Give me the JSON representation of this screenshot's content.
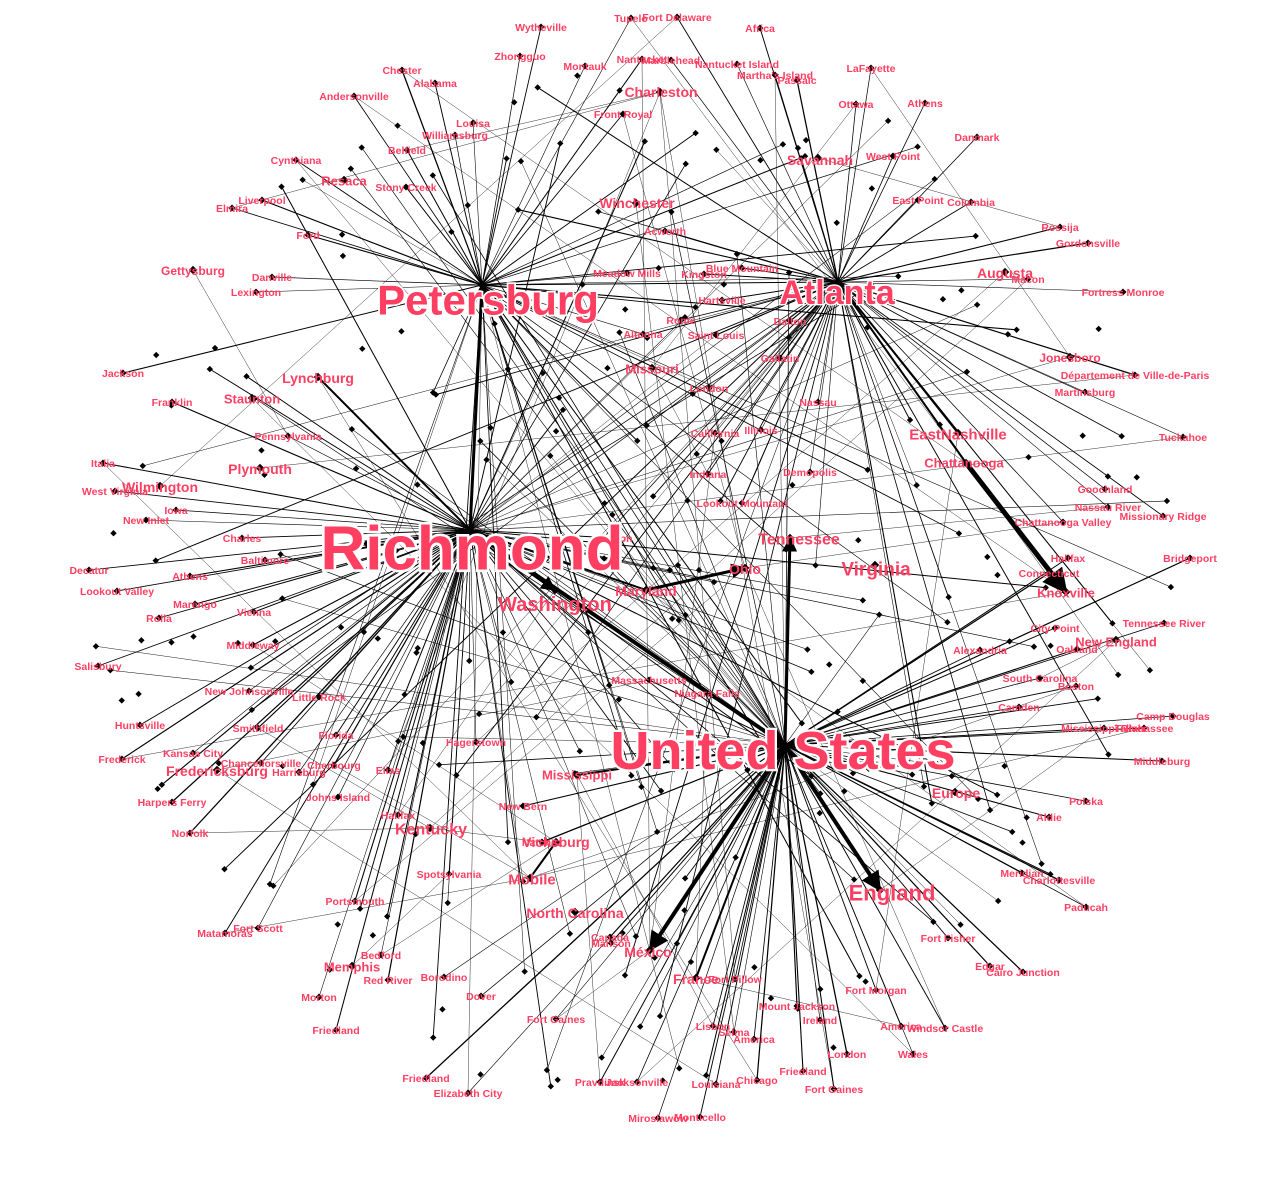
{
  "colors": {
    "label": "#ff3f62",
    "edge": "#000000",
    "node": "#000000",
    "background": "#ffffff"
  },
  "hubs": [
    {
      "id": "Richmond",
      "label": "Richmond",
      "size": "xl"
    },
    {
      "id": "UnitedStates",
      "label": "United States",
      "size": "xl"
    },
    {
      "id": "Petersburg",
      "label": "Petersburg",
      "size": "l"
    },
    {
      "id": "Atlanta",
      "label": "Atlanta",
      "size": "l"
    },
    {
      "id": "Washington",
      "label": "Washington",
      "size": "m"
    },
    {
      "id": "England",
      "label": "England",
      "size": "m"
    },
    {
      "id": "Tennessee",
      "label": "Tennessee",
      "size": "m"
    },
    {
      "id": "Virginia",
      "label": "Virginia",
      "size": "m"
    },
    {
      "id": "Charleston",
      "label": "Charleston",
      "size": "s"
    },
    {
      "id": "Savannah",
      "label": "Savannah",
      "size": "s"
    },
    {
      "id": "Winchester",
      "label": "Winchester",
      "size": "s"
    },
    {
      "id": "Lynchburg",
      "label": "Lynchburg",
      "size": "s"
    },
    {
      "id": "Kentucky",
      "label": "Kentucky",
      "size": "s"
    },
    {
      "id": "Vicksburg",
      "label": "Vicksburg",
      "size": "s"
    },
    {
      "id": "Mobile",
      "label": "Mobile",
      "size": "s"
    },
    {
      "id": "Chattanooga",
      "label": "Chattanooga",
      "size": "s"
    },
    {
      "id": "EastNashville",
      "label": "EastNashville",
      "size": "s"
    },
    {
      "id": "Mexico",
      "label": "México",
      "size": "s"
    },
    {
      "id": "France",
      "label": "France",
      "size": "s"
    },
    {
      "id": "Knoxville",
      "label": "Knoxville",
      "size": "s"
    },
    {
      "id": "Maryland",
      "label": "Maryland",
      "size": "s"
    },
    {
      "id": "Ohio",
      "label": "Ohio",
      "size": "s"
    },
    {
      "id": "Mississippi",
      "label": "Mississippi",
      "size": "s"
    },
    {
      "id": "NorthCarolina",
      "label": "North Carolina",
      "size": "s"
    },
    {
      "id": "Fredericksburg",
      "label": "Fredericksburg",
      "size": "s"
    },
    {
      "id": "Europe",
      "label": "Europe",
      "size": "s"
    },
    {
      "id": "Augusta",
      "label": "Augusta",
      "size": "s"
    },
    {
      "id": "Missouri",
      "label": "Missouri",
      "size": "s"
    },
    {
      "id": "Gettysburg",
      "label": "Gettysburg",
      "size": "s"
    },
    {
      "id": "Plymouth",
      "label": "Plymouth",
      "size": "s"
    },
    {
      "id": "Staunton",
      "label": "Staunton",
      "size": "s"
    },
    {
      "id": "Wilmington",
      "label": "Wilmington",
      "size": "s"
    },
    {
      "id": "Resaca",
      "label": "Resaca",
      "size": "s"
    },
    {
      "id": "Memphis",
      "label": "Memphis",
      "size": "s"
    },
    {
      "id": "NewEngland",
      "label": "New England",
      "size": "s"
    },
    {
      "id": "Jonesboro",
      "label": "Jonesboro",
      "size": "s"
    }
  ],
  "places": [
    "Wytheville",
    "Tupelo",
    "Fort Delaware",
    "Africa",
    "Zhongguo",
    "Nantucket",
    "Marblehead",
    "Nantucket Island",
    "Martha's Island",
    "Passaic",
    "Montauk",
    "Chester",
    "Alabama",
    "LaFayette",
    "Andersonville",
    "Ottawa",
    "Athens",
    "Louisa",
    "Williamsburg",
    "Front Royal",
    "Danmark",
    "Belfield",
    "Cynthiana",
    "West Point",
    "Stony Creek",
    "East Point",
    "Columbia",
    "Liverpool",
    "Elmira",
    "Rossija",
    "Ford",
    "Acworth",
    "Gordonsville",
    "Blue Mountain",
    "Macon",
    "Meadow Mills",
    "Kingston",
    "Danville",
    "Lexington",
    "Hartsville",
    "Fortress Monroe",
    "Rome",
    "Dalton",
    "Altoona",
    "Saint Louis",
    "Gallatin",
    "Jackson",
    "Département de Ville-de-Paris",
    "London",
    "Martinsburg",
    "Franklin",
    "Nassau",
    "California",
    "Illinois",
    "Pennsylvania",
    "Tuckahoe",
    "Italia",
    "Demopolis",
    "Indiana",
    "West Virginia",
    "Goochland",
    "Lookout Mountain",
    "Iowa",
    "New Inlet",
    "Nassau River",
    "Chattanooga Valley",
    "Missionary Ridge",
    "Charles",
    "Kinston",
    "Baltimore",
    "Halifax",
    "Bridgeport",
    "Decatur",
    "Connecticut",
    "Lookout Valley",
    "Athens",
    "Marengo",
    "Vienna",
    "Rolla",
    "City Point",
    "Tennessee River",
    "Oakland",
    "Salisbury",
    "Middleway",
    "Alexandria",
    "Massachusetts",
    "Niagara Falls",
    "South Carolina",
    "Boston",
    "New Johnsonville",
    "Little Rock",
    "Camp Douglas",
    "Huntsville",
    "Smithfield",
    "Camden",
    "Mississippi River",
    "Tallahassee",
    "Florida",
    "Kansas City",
    "Chancellorsville",
    "Cherbourg",
    "Harrisburg",
    "Hagerstown",
    "Frederick",
    "Elias",
    "Middleburg",
    "Johns Island",
    "Harpers Ferry",
    "Polska",
    "New Bern",
    "Halifax",
    "Aldie",
    "Norfolk",
    "Spotsylvania",
    "Meridian",
    "Portsmouth",
    "Fort Scott",
    "Charlottesville",
    "Paducah",
    "Matamoras",
    "Canada",
    "Fort Fisher",
    "Manson",
    "Bedford",
    "Edgar",
    "Cairo Junction",
    "Red River",
    "Borodino",
    "Fort Pillow",
    "Morton",
    "Dover",
    "Mount Jackson",
    "Fort Morgan",
    "Ireland",
    "America",
    "Windsor Castle",
    "Friedland",
    "Fort Gaines",
    "Lisbon",
    "Selma",
    "America",
    "London",
    "Wales",
    "Friedland",
    "Friedland",
    "Chicago",
    "Pravdinsk",
    "Jacksonville",
    "Louisiana",
    "Fort Gaines",
    "Elizabeth City",
    "Mirosławów",
    "Monticello",
    "Natchez",
    "Ashland",
    "Vicksburg"
  ]
}
